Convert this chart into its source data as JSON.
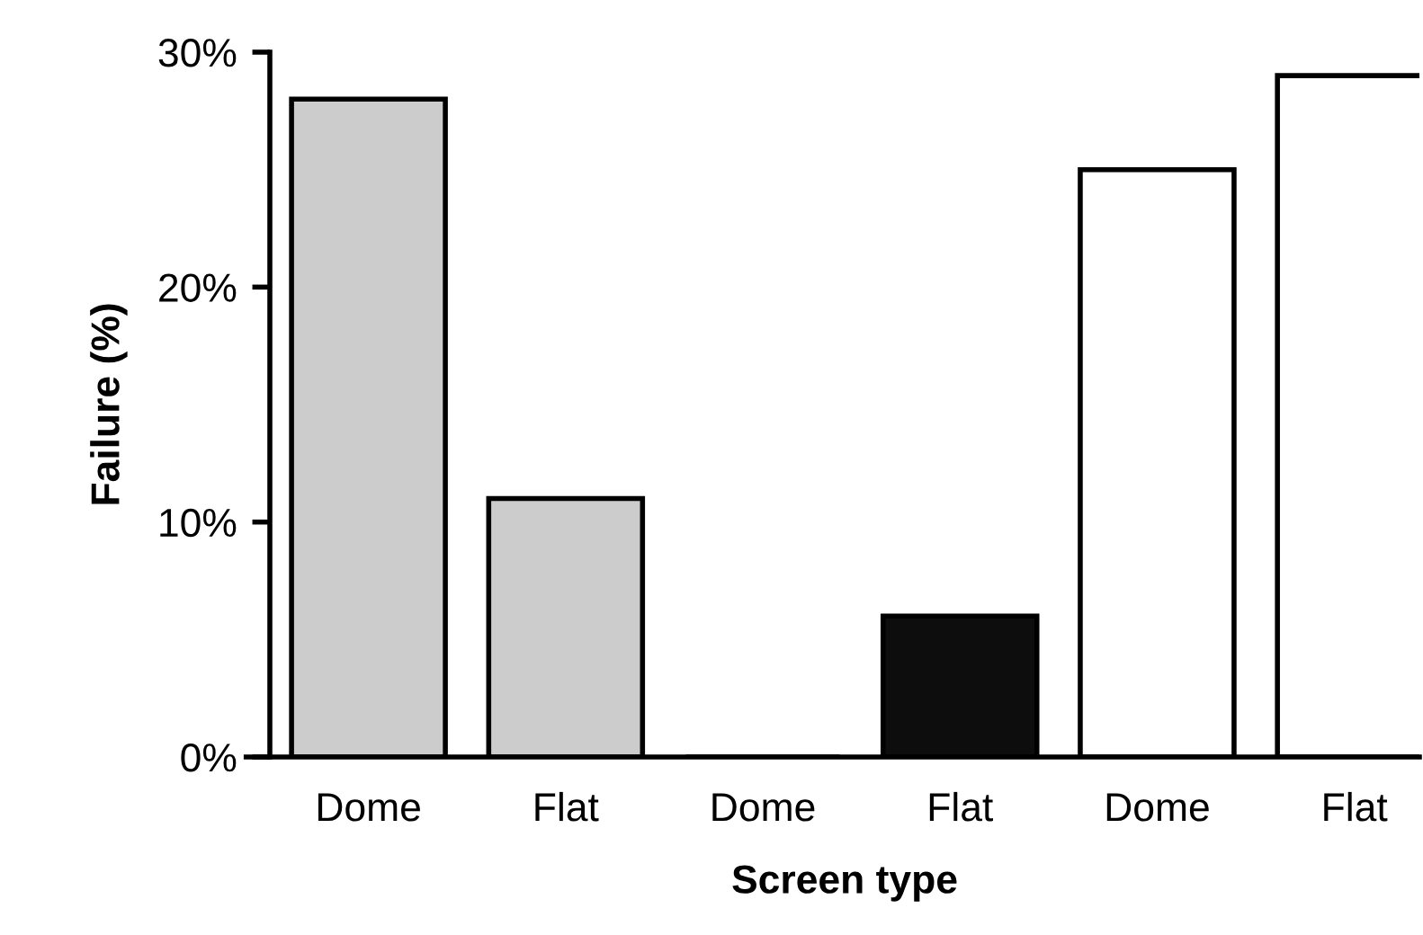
{
  "chart_data": {
    "type": "bar",
    "xlabel": "Screen type",
    "ylabel": "Failure (%)",
    "categories": [
      "Dome",
      "Flat",
      "Dome",
      "Flat",
      "Dome",
      "Flat"
    ],
    "values": [
      28,
      11,
      0,
      6,
      25,
      29
    ],
    "colors": [
      "#cccccc",
      "#cccccc",
      "#cccccc",
      "#0d0d0d",
      "#ffffff",
      "#ffffff"
    ],
    "ylim": [
      0,
      30
    ],
    "yticks": [
      {
        "value": 0,
        "label": "0%"
      },
      {
        "value": 10,
        "label": "10%"
      },
      {
        "value": 20,
        "label": "20%"
      },
      {
        "value": 30,
        "label": "30%"
      }
    ],
    "grid": false,
    "legend": false
  }
}
